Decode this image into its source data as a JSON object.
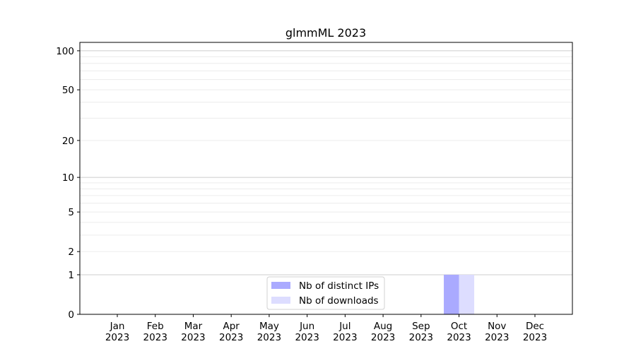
{
  "chart_data": {
    "type": "bar",
    "title": "glmmML 2023",
    "xlabel": "",
    "ylabel": "",
    "yscale": "log(1+y)",
    "ylim": [
      0,
      116
    ],
    "yticks": [
      0,
      1,
      2,
      5,
      10,
      20,
      50,
      100
    ],
    "grid": true,
    "legend_position": "bottom-center",
    "categories": [
      "Jan\n2023",
      "Feb\n2023",
      "Mar\n2023",
      "Apr\n2023",
      "May\n2023",
      "Jun\n2023",
      "Jul\n2023",
      "Aug\n2023",
      "Sep\n2023",
      "Oct\n2023",
      "Nov\n2023",
      "Dec\n2023"
    ],
    "series": [
      {
        "name": "Nb of distinct IPs",
        "color": "#aaaaff",
        "values": [
          0,
          0,
          0,
          0,
          0,
          0,
          0,
          0,
          0,
          1,
          0,
          0
        ]
      },
      {
        "name": "Nb of downloads",
        "color": "#ddddff",
        "values": [
          0,
          0,
          0,
          0,
          0,
          0,
          0,
          0,
          0,
          1,
          0,
          0
        ]
      }
    ]
  }
}
